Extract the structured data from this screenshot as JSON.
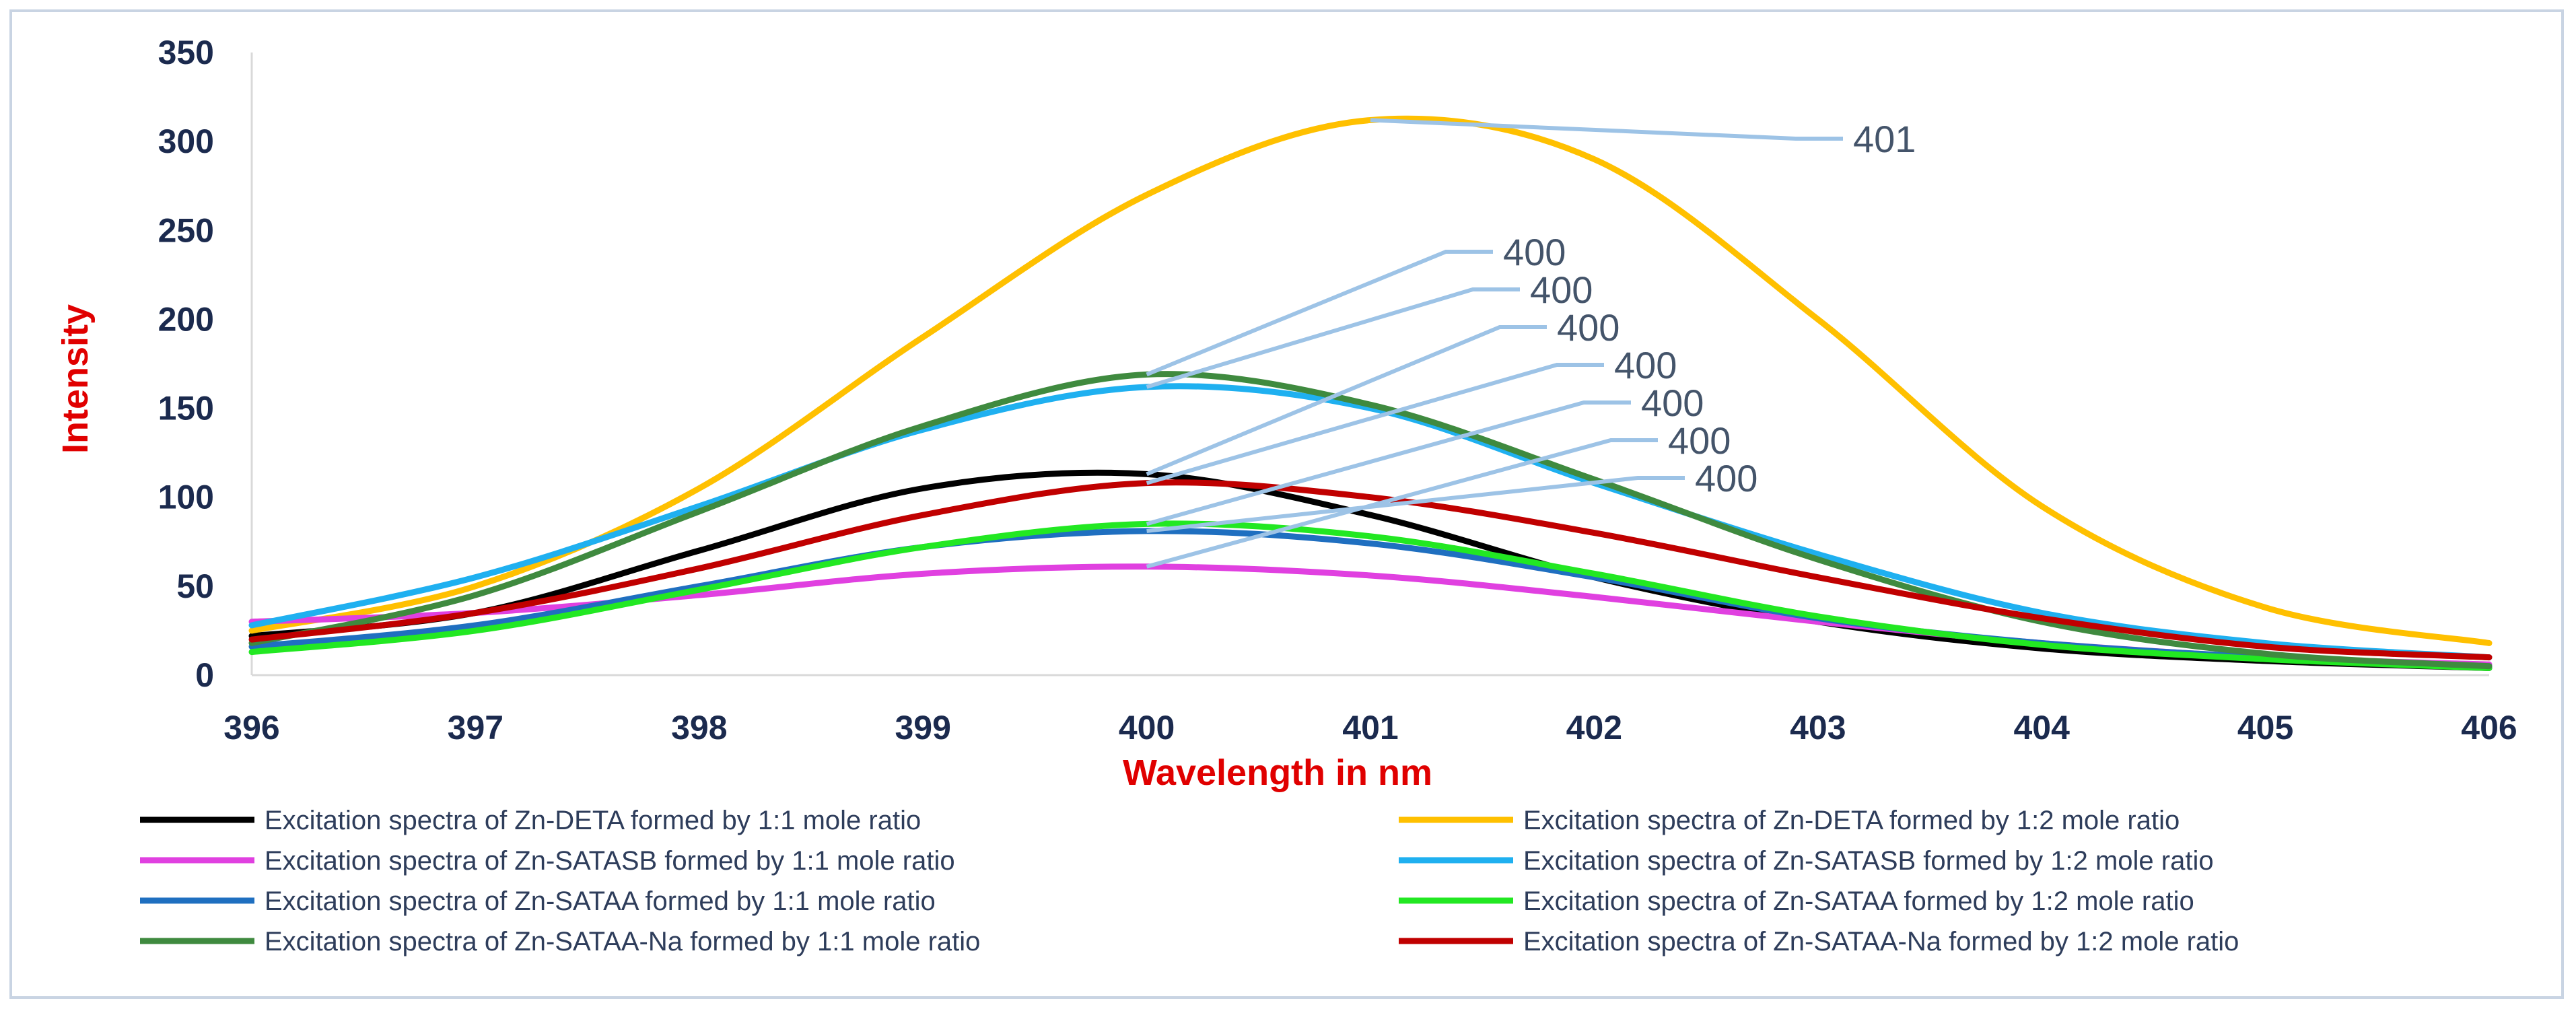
{
  "chart_data": {
    "type": "line",
    "title": "",
    "xlabel": "Wavelength in nm",
    "ylabel": "Intensity",
    "xlim": [
      396,
      406
    ],
    "ylim": [
      0,
      350
    ],
    "x_ticks": [
      "396",
      "397",
      "398",
      "399",
      "400",
      "401",
      "402",
      "403",
      "404",
      "405",
      "406"
    ],
    "y_ticks": [
      "0",
      "50",
      "100",
      "150",
      "200",
      "250",
      "300",
      "350"
    ],
    "grid": false,
    "legend_position": "bottom",
    "x": [
      396,
      397,
      398,
      399,
      400,
      401,
      402,
      403,
      404,
      405,
      406
    ],
    "series": [
      {
        "name": "Excitation spectra of Zn-DETA formed by 1:1 mole ratio",
        "color": "#000000",
        "peak": {
          "x": 400,
          "y": 113,
          "label": "400"
        },
        "values": [
          22,
          35,
          70,
          105,
          113,
          90,
          55,
          30,
          15,
          8,
          4
        ]
      },
      {
        "name": "Excitation spectra of Zn-DETA formed by 1:2 mole ratio",
        "color": "#ffc000",
        "peak": {
          "x": 401,
          "y": 312,
          "label": "401"
        },
        "values": [
          25,
          50,
          105,
          190,
          270,
          312,
          290,
          200,
          95,
          38,
          18
        ]
      },
      {
        "name": "Excitation spectra of Zn-SATASB formed by 1:1 mole ratio",
        "color": "#e040e0",
        "peak": {
          "x": 400,
          "y": 61,
          "label": "400"
        },
        "values": [
          30,
          35,
          45,
          57,
          61,
          56,
          44,
          30,
          18,
          10,
          6
        ]
      },
      {
        "name": "Excitation spectra of Zn-SATASB formed by 1:2 mole ratio",
        "color": "#1fb0f0",
        "peak": {
          "x": 400,
          "y": 162,
          "label": "400"
        },
        "values": [
          28,
          55,
          95,
          138,
          162,
          150,
          108,
          68,
          35,
          18,
          10
        ]
      },
      {
        "name": "Excitation spectra of Zn-SATAA formed by 1:1 mole ratio",
        "color": "#1f6fc0",
        "peak": {
          "x": 400,
          "y": 81,
          "label": "400"
        },
        "values": [
          16,
          28,
          50,
          72,
          81,
          74,
          55,
          32,
          18,
          10,
          5
        ]
      },
      {
        "name": "Excitation spectra of Zn-SATAA formed by 1:2 mole ratio",
        "color": "#22e822",
        "peak": {
          "x": 400,
          "y": 85,
          "label": "400"
        },
        "values": [
          13,
          25,
          48,
          72,
          85,
          78,
          57,
          33,
          17,
          9,
          4
        ]
      },
      {
        "name": "Excitation spectra of Zn-SATAA-Na formed by 1:1 mole ratio",
        "color": "#3f8a3f",
        "peak": {
          "x": 400,
          "y": 169,
          "label": "400"
        },
        "values": [
          18,
          45,
          92,
          140,
          169,
          152,
          110,
          65,
          30,
          12,
          5
        ]
      },
      {
        "name": "Excitation spectra of Zn-SATAA-Na formed by 1:2 mole ratio",
        "color": "#c00000",
        "peak": {
          "x": 400,
          "y": 108,
          "label": "400"
        },
        "values": [
          20,
          35,
          60,
          90,
          108,
          100,
          80,
          55,
          32,
          16,
          10
        ]
      }
    ]
  }
}
